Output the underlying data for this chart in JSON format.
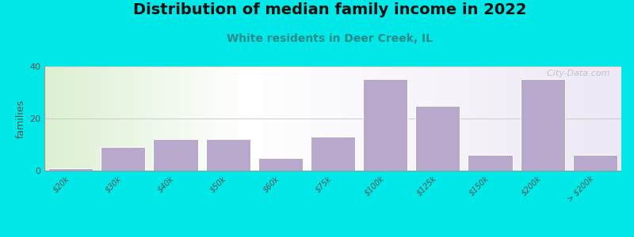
{
  "title": "Distribution of median family income in 2022",
  "subtitle": "White residents in Deer Creek, IL",
  "ylabel": "families",
  "background_color": "#00e8e8",
  "bar_color": "#b8a8cc",
  "bar_edge_color": "#ffffff",
  "categories": [
    "$20k",
    "$30k",
    "$40k",
    "$50k",
    "$60k",
    "$75k",
    "$100k",
    "$125k",
    "$150k",
    "$200k",
    "> $200k"
  ],
  "values": [
    1,
    9,
    12,
    12,
    5,
    13,
    35,
    25,
    6,
    35,
    6
  ],
  "ylim": [
    0,
    40
  ],
  "yticks": [
    0,
    20,
    40
  ],
  "title_fontsize": 14,
  "subtitle_fontsize": 10,
  "subtitle_color": "#2a8a8a",
  "watermark": "  City-Data.com"
}
